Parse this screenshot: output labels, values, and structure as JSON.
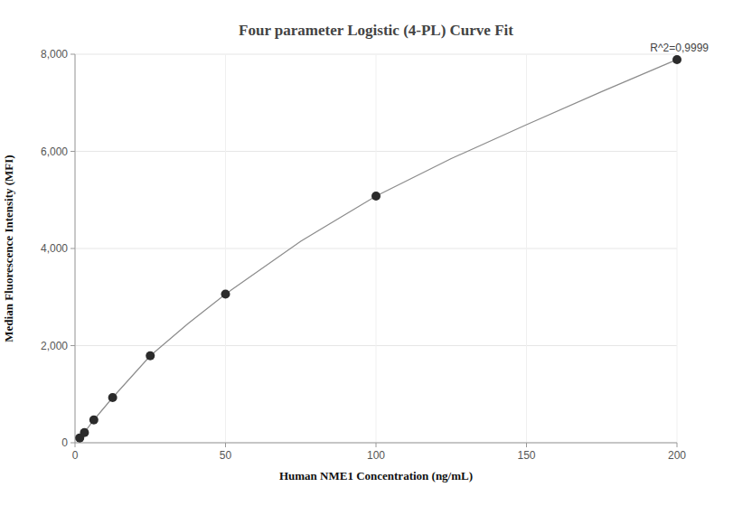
{
  "chart_data": {
    "type": "scatter",
    "title": "Four parameter Logistic (4-PL) Curve Fit",
    "x_label": "Human NME1 Concentration (ng/mL)",
    "y_label": "Median Fluorescence Intensity (MFI)",
    "annotation": "R^2=0,9999",
    "x": [
      1.5625,
      3.125,
      6.25,
      12.5,
      25,
      50,
      100,
      200
    ],
    "series": [
      {
        "type": "scatter",
        "color": "#2b2b2b",
        "marker": "circle",
        "values": [
          100,
          210,
          470,
          930,
          1790,
          3060,
          5080,
          7890
        ]
      },
      {
        "type": "line",
        "color": "#8c8c8c",
        "line_style": "solid",
        "x": [
          1.5625,
          3.125,
          6.25,
          12.5,
          25,
          37.5,
          50,
          75,
          100,
          125,
          150,
          175,
          200
        ],
        "values": [
          100,
          210,
          470,
          930,
          1790,
          2450,
          3060,
          4150,
          5080,
          5850,
          6550,
          7230,
          7890
        ]
      }
    ],
    "xlim": [
      0,
      200
    ],
    "xticks": [
      0,
      50,
      100,
      150,
      200
    ],
    "ylim": [
      0,
      8000
    ],
    "yticks": [
      0,
      {
        "value": 2000,
        "label": "2,000"
      },
      {
        "value": 4000,
        "label": "4,000"
      },
      {
        "value": 6000,
        "label": "6,000"
      },
      {
        "value": 8000,
        "label": "8,000"
      }
    ],
    "grid": true
  }
}
